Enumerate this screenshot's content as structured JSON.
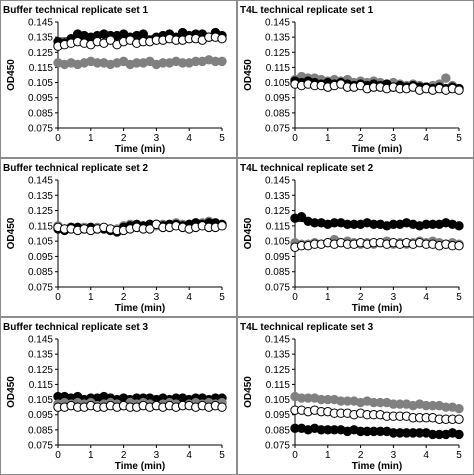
{
  "colors": {
    "black": "#000000",
    "gray": "#808080",
    "open_fill": "#ffffff",
    "border": "#8c8c8c"
  },
  "axes": {
    "xlabel": "Time (min)",
    "ylabel": "OD450",
    "xlim": [
      0,
      5
    ],
    "ylim": [
      0.075,
      0.145
    ],
    "xticks": [
      "0",
      "1",
      "2",
      "3",
      "4",
      "5"
    ],
    "yticks": [
      "0.075",
      "0.085",
      "0.095",
      "0.105",
      "0.115",
      "0.125",
      "0.135",
      "0.145"
    ]
  },
  "chart_data": [
    {
      "type": "scatter",
      "title": "Buffer technical replicate set 1",
      "xlabel": "Time (min)",
      "ylabel": "OD450",
      "xlim": [
        0,
        5
      ],
      "ylim": [
        0.075,
        0.145
      ],
      "x": [
        0,
        0.2,
        0.4,
        0.6,
        0.8,
        1.0,
        1.2,
        1.4,
        1.6,
        1.8,
        2.0,
        2.2,
        2.4,
        2.6,
        2.8,
        3.0,
        3.2,
        3.4,
        3.6,
        3.8,
        4.0,
        4.2,
        4.4,
        4.6,
        4.8,
        5.0
      ],
      "series": [
        {
          "style": "filled-black",
          "values": [
            0.132,
            0.131,
            0.134,
            0.137,
            0.136,
            0.135,
            0.136,
            0.137,
            0.136,
            0.136,
            0.137,
            0.135,
            0.136,
            0.137,
            0.133,
            0.135,
            0.136,
            0.137,
            0.135,
            0.138,
            0.136,
            0.137,
            0.137,
            0.135,
            0.138,
            0.136
          ]
        },
        {
          "style": "open-circle",
          "values": [
            0.129,
            0.13,
            0.131,
            0.132,
            0.131,
            0.13,
            0.132,
            0.131,
            0.133,
            0.13,
            0.132,
            0.133,
            0.131,
            0.132,
            0.132,
            0.133,
            0.133,
            0.134,
            0.133,
            0.133,
            0.134,
            0.134,
            0.133,
            0.135,
            0.135,
            0.134
          ]
        },
        {
          "style": "filled-gray",
          "values": [
            0.118,
            0.117,
            0.118,
            0.117,
            0.118,
            0.119,
            0.118,
            0.118,
            0.117,
            0.118,
            0.119,
            0.117,
            0.118,
            0.118,
            0.119,
            0.117,
            0.118,
            0.118,
            0.119,
            0.118,
            0.118,
            0.119,
            0.119,
            0.12,
            0.119,
            0.119
          ]
        }
      ]
    },
    {
      "type": "scatter",
      "title": "T4L technical replicate set 1",
      "xlabel": "Time (min)",
      "ylabel": "OD450",
      "xlim": [
        0,
        5
      ],
      "ylim": [
        0.075,
        0.145
      ],
      "x": [
        0,
        0.2,
        0.4,
        0.6,
        0.8,
        1.0,
        1.2,
        1.4,
        1.6,
        1.8,
        2.0,
        2.2,
        2.4,
        2.6,
        2.8,
        3.0,
        3.2,
        3.4,
        3.6,
        3.8,
        4.0,
        4.2,
        4.4,
        4.6,
        4.8,
        5.0
      ],
      "series": [
        {
          "style": "filled-gray",
          "values": [
            0.107,
            0.109,
            0.108,
            0.108,
            0.107,
            0.106,
            0.107,
            0.106,
            0.107,
            0.105,
            0.106,
            0.105,
            0.106,
            0.105,
            0.104,
            0.105,
            0.104,
            0.103,
            0.104,
            0.103,
            0.102,
            0.103,
            0.104,
            0.108,
            0.103,
            0.101
          ]
        },
        {
          "style": "filled-black",
          "values": [
            0.106,
            0.105,
            0.106,
            0.105,
            0.104,
            0.105,
            0.104,
            0.105,
            0.104,
            0.103,
            0.104,
            0.103,
            0.104,
            0.103,
            0.104,
            0.102,
            0.103,
            0.102,
            0.103,
            0.102,
            0.102,
            0.101,
            0.102,
            0.101,
            0.102,
            0.101
          ]
        },
        {
          "style": "open-circle",
          "values": [
            0.104,
            0.103,
            0.104,
            0.103,
            0.103,
            0.102,
            0.103,
            0.104,
            0.102,
            0.102,
            0.103,
            0.101,
            0.102,
            0.102,
            0.101,
            0.102,
            0.101,
            0.101,
            0.102,
            0.1,
            0.101,
            0.1,
            0.101,
            0.1,
            0.101,
            0.1
          ]
        }
      ]
    },
    {
      "type": "scatter",
      "title": "Buffer technical replicate set 2",
      "xlabel": "Time (min)",
      "ylabel": "OD450",
      "xlim": [
        0,
        5
      ],
      "ylim": [
        0.075,
        0.145
      ],
      "x": [
        0,
        0.2,
        0.4,
        0.6,
        0.8,
        1.0,
        1.2,
        1.4,
        1.6,
        1.8,
        2.0,
        2.2,
        2.4,
        2.6,
        2.8,
        3.0,
        3.2,
        3.4,
        3.6,
        3.8,
        4.0,
        4.2,
        4.4,
        4.6,
        4.8,
        5.0
      ],
      "series": [
        {
          "style": "filled-gray",
          "values": [
            0.115,
            0.113,
            0.114,
            0.113,
            0.114,
            0.113,
            0.114,
            0.113,
            0.112,
            0.113,
            0.115,
            0.116,
            0.115,
            0.114,
            0.116,
            0.115,
            0.116,
            0.115,
            0.117,
            0.116,
            0.116,
            0.117,
            0.117,
            0.118,
            0.116,
            0.115
          ]
        },
        {
          "style": "filled-black",
          "values": [
            0.113,
            0.112,
            0.114,
            0.114,
            0.113,
            0.114,
            0.113,
            0.113,
            0.112,
            0.111,
            0.114,
            0.115,
            0.116,
            0.115,
            0.116,
            0.116,
            0.115,
            0.116,
            0.116,
            0.115,
            0.116,
            0.117,
            0.116,
            0.117,
            0.117,
            0.116
          ]
        },
        {
          "style": "open-circle",
          "values": [
            0.114,
            0.113,
            0.113,
            0.112,
            0.113,
            0.112,
            0.113,
            0.114,
            0.113,
            0.112,
            0.112,
            0.113,
            0.114,
            0.113,
            0.113,
            0.116,
            0.114,
            0.114,
            0.115,
            0.114,
            0.113,
            0.114,
            0.115,
            0.114,
            0.114,
            0.115
          ]
        }
      ]
    },
    {
      "type": "scatter",
      "title": "T4L technical replicate set 2",
      "xlabel": "Time (min)",
      "ylabel": "OD450",
      "xlim": [
        0,
        5
      ],
      "ylim": [
        0.075,
        0.145
      ],
      "x": [
        0,
        0.2,
        0.4,
        0.6,
        0.8,
        1.0,
        1.2,
        1.4,
        1.6,
        1.8,
        2.0,
        2.2,
        2.4,
        2.6,
        2.8,
        3.0,
        3.2,
        3.4,
        3.6,
        3.8,
        4.0,
        4.2,
        4.4,
        4.6,
        4.8,
        5.0
      ],
      "series": [
        {
          "style": "filled-black",
          "values": [
            0.12,
            0.121,
            0.118,
            0.117,
            0.117,
            0.116,
            0.117,
            0.117,
            0.116,
            0.116,
            0.116,
            0.117,
            0.116,
            0.116,
            0.115,
            0.116,
            0.116,
            0.117,
            0.116,
            0.115,
            0.116,
            0.116,
            0.116,
            0.117,
            0.116,
            0.115
          ]
        },
        {
          "style": "filled-gray",
          "values": [
            0.104,
            0.103,
            0.103,
            0.104,
            0.103,
            0.104,
            0.106,
            0.104,
            0.105,
            0.104,
            0.103,
            0.104,
            0.103,
            0.104,
            0.105,
            0.103,
            0.104,
            0.103,
            0.104,
            0.105,
            0.104,
            0.105,
            0.104,
            0.103,
            0.104,
            0.103
          ]
        },
        {
          "style": "open-circle",
          "values": [
            0.101,
            0.102,
            0.102,
            0.103,
            0.103,
            0.104,
            0.103,
            0.104,
            0.103,
            0.103,
            0.104,
            0.103,
            0.104,
            0.104,
            0.103,
            0.104,
            0.103,
            0.104,
            0.103,
            0.104,
            0.103,
            0.103,
            0.102,
            0.103,
            0.102,
            0.102
          ]
        }
      ]
    },
    {
      "type": "scatter",
      "title": "Buffer technical replicate set 3",
      "xlabel": "Time (min)",
      "ylabel": "OD450",
      "xlim": [
        0,
        5
      ],
      "ylim": [
        0.075,
        0.145
      ],
      "x": [
        0,
        0.2,
        0.4,
        0.6,
        0.8,
        1.0,
        1.2,
        1.4,
        1.6,
        1.8,
        2.0,
        2.2,
        2.4,
        2.6,
        2.8,
        3.0,
        3.2,
        3.4,
        3.6,
        3.8,
        4.0,
        4.2,
        4.4,
        4.6,
        4.8,
        5.0
      ],
      "series": [
        {
          "style": "filled-black",
          "values": [
            0.107,
            0.107,
            0.106,
            0.107,
            0.105,
            0.106,
            0.106,
            0.107,
            0.106,
            0.105,
            0.106,
            0.105,
            0.106,
            0.106,
            0.106,
            0.105,
            0.106,
            0.105,
            0.106,
            0.106,
            0.105,
            0.106,
            0.106,
            0.105,
            0.106,
            0.106
          ]
        },
        {
          "style": "filled-gray",
          "values": [
            0.102,
            0.103,
            0.102,
            0.103,
            0.102,
            0.103,
            0.101,
            0.102,
            0.103,
            0.102,
            0.101,
            0.103,
            0.102,
            0.103,
            0.102,
            0.101,
            0.102,
            0.103,
            0.102,
            0.101,
            0.102,
            0.103,
            0.102,
            0.103,
            0.102,
            0.103
          ]
        },
        {
          "style": "open-circle",
          "values": [
            0.1,
            0.1,
            0.101,
            0.1,
            0.1,
            0.101,
            0.1,
            0.1,
            0.101,
            0.1,
            0.101,
            0.1,
            0.1,
            0.101,
            0.1,
            0.101,
            0.1,
            0.101,
            0.1,
            0.101,
            0.101,
            0.1,
            0.101,
            0.1,
            0.101,
            0.1
          ]
        }
      ]
    },
    {
      "type": "scatter",
      "title": "T4L technical replicate set 3",
      "xlabel": "Time (min)",
      "ylabel": "OD450",
      "xlim": [
        0,
        5
      ],
      "ylim": [
        0.075,
        0.145
      ],
      "x": [
        0,
        0.2,
        0.4,
        0.6,
        0.8,
        1.0,
        1.2,
        1.4,
        1.6,
        1.8,
        2.0,
        2.2,
        2.4,
        2.6,
        2.8,
        3.0,
        3.2,
        3.4,
        3.6,
        3.8,
        4.0,
        4.2,
        4.4,
        4.6,
        4.8,
        5.0
      ],
      "series": [
        {
          "style": "filled-gray",
          "values": [
            0.107,
            0.106,
            0.106,
            0.106,
            0.105,
            0.105,
            0.105,
            0.104,
            0.104,
            0.104,
            0.103,
            0.104,
            0.103,
            0.103,
            0.103,
            0.102,
            0.102,
            0.102,
            0.101,
            0.102,
            0.101,
            0.101,
            0.101,
            0.1,
            0.1,
            0.099
          ]
        },
        {
          "style": "open-circle",
          "values": [
            0.098,
            0.098,
            0.097,
            0.098,
            0.097,
            0.097,
            0.096,
            0.096,
            0.096,
            0.095,
            0.096,
            0.095,
            0.095,
            0.095,
            0.094,
            0.094,
            0.094,
            0.094,
            0.093,
            0.093,
            0.093,
            0.093,
            0.092,
            0.092,
            0.092,
            0.092
          ]
        },
        {
          "style": "filled-black",
          "values": [
            0.086,
            0.086,
            0.085,
            0.086,
            0.085,
            0.085,
            0.085,
            0.085,
            0.084,
            0.085,
            0.084,
            0.084,
            0.084,
            0.084,
            0.084,
            0.083,
            0.083,
            0.083,
            0.083,
            0.083,
            0.083,
            0.082,
            0.082,
            0.082,
            0.083,
            0.082
          ]
        }
      ]
    }
  ]
}
